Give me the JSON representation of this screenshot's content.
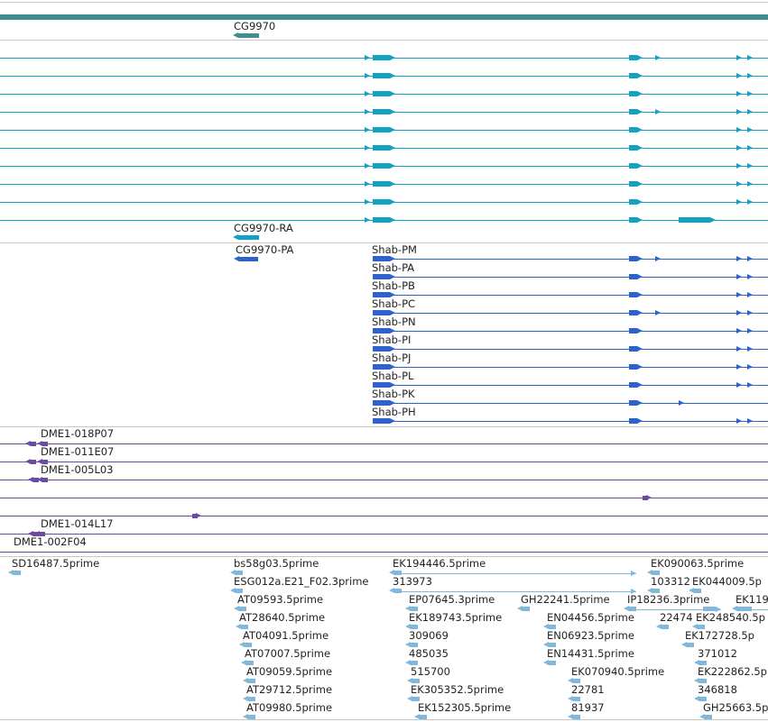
{
  "browser_title": "",
  "colors": {
    "gene_track": "#3f8f8f",
    "mrna": "#11a1c4",
    "cds": "#2c62c9",
    "clone": "#6b4aa3",
    "est": "#7fb8dc",
    "separator": "#c8c8c8"
  },
  "tracks": {
    "gene": {
      "labels": [
        "CG9970"
      ]
    },
    "mrna": {
      "labels": [
        "CG9970-RA"
      ]
    },
    "cds": {
      "labels": [
        "CG9970-PA",
        "Shab-PM",
        "Shab-PA",
        "Shab-PB",
        "Shab-PC",
        "Shab-PN",
        "Shab-PI",
        "Shab-PJ",
        "Shab-PL",
        "Shab-PK",
        "Shab-PH"
      ]
    },
    "clones": {
      "labels": [
        "DME1-018P07",
        "DME1-011E07",
        "DME1-005L03",
        "DME1-014L17",
        "DME1-002F04"
      ]
    },
    "est": {
      "labels": [
        "SD16487.5prime",
        "bs58g03.5prime",
        "EK194446.5prime",
        "EK090063.5prime",
        "ESG012a.E21_F02.3prime",
        "313973",
        "103312",
        "EK044009.5p",
        "AT09593.5prime",
        "EP07645.3prime",
        "GH22241.5prime",
        "IP18236.3prime",
        "EK119",
        "AT28640.5prime",
        "EK189743.5prime",
        "EN04456.5prime",
        "22474",
        "EK248540.5p",
        "AT04091.5prime",
        "309069",
        "EN06923.5prime",
        "EK172728.5p",
        "AT07007.5prime",
        "485035",
        "EN14431.5prime",
        "371012",
        "AT09059.5prime",
        "515700",
        "EK070940.5prime",
        "EK222862.5p",
        "AT29712.5prime",
        "EK305352.5prime",
        "22781",
        "346818",
        "AT09980.5prime",
        "EK152305.5prime",
        "81937",
        "GH25663.5p"
      ]
    }
  }
}
